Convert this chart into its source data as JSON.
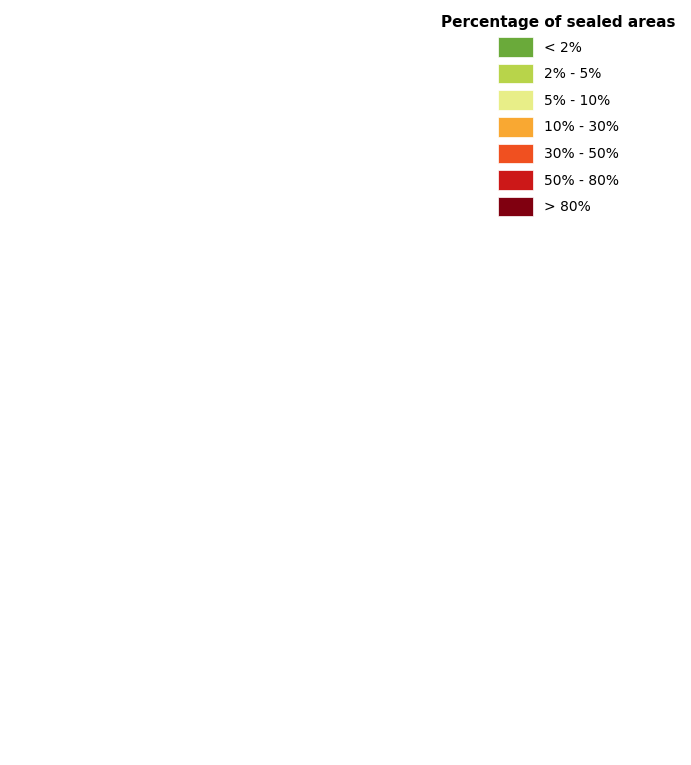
{
  "title": "Percentage of sealed areas",
  "legend_labels": [
    "< 2%",
    "2% - 5%",
    "5% - 10%",
    "10% - 30%",
    "30% - 50%",
    "50% - 80%",
    "> 80%"
  ],
  "legend_colors": [
    "#6aaa3a",
    "#b8d44a",
    "#e8ee88",
    "#f9a832",
    "#f05020",
    "#cc1818",
    "#800010"
  ],
  "background_color": "#ffffff",
  "title_fontsize": 11,
  "legend_fontsize": 10,
  "figsize": [
    6.91,
    7.65
  ],
  "dpi": 100
}
